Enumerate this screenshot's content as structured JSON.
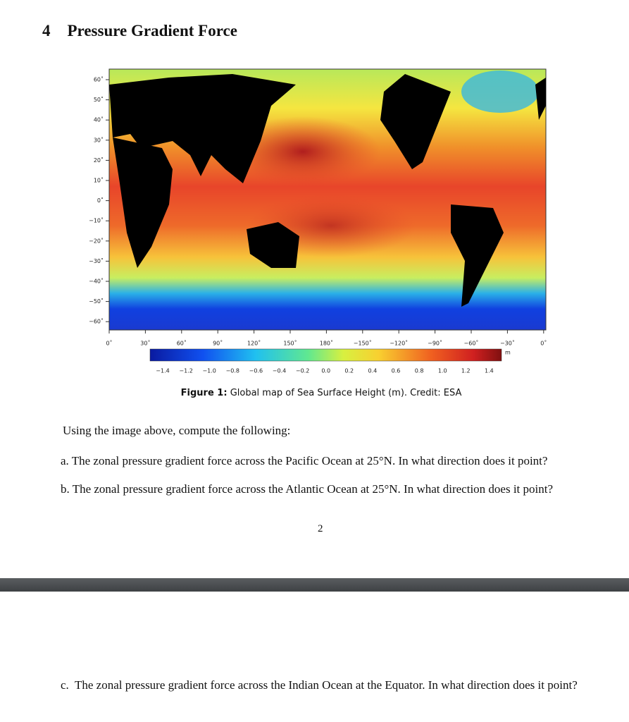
{
  "section": {
    "number": "4",
    "title": "Pressure Gradient Force"
  },
  "figure": {
    "lat_labels": [
      "60˚",
      "50˚",
      "40˚",
      "30˚",
      "20˚",
      "10˚",
      "0˚",
      "−10˚",
      "−20˚",
      "−30˚",
      "−40˚",
      "−50˚",
      "−60˚"
    ],
    "lon_labels": [
      "0˚",
      "30˚",
      "60˚",
      "90˚",
      "120˚",
      "150˚",
      "180˚",
      "−150˚",
      "−120˚",
      "−90˚",
      "−60˚",
      "−30˚",
      "0˚"
    ],
    "colorbar_labels": [
      "−1.4",
      "−1.2",
      "−1.0",
      "−0.8",
      "−0.6",
      "−0.4",
      "−0.2",
      "0.0",
      "0.2",
      "0.4",
      "0.6",
      "0.8",
      "1.0",
      "1.2",
      "1.4"
    ],
    "unit": "m",
    "caption_label": "Figure 1:",
    "caption": "Global map of Sea Surface Height (m). Credit: ESA"
  },
  "intro": "Using the image above, compute the following:",
  "questions": [
    {
      "label": "a.",
      "text": "The zonal pressure gradient force across the Pacific Ocean at 25°N. In what direction does it point?"
    },
    {
      "label": "b.",
      "text": "The zonal pressure gradient force across the Atlantic Ocean at 25°N. In what direction does it point?"
    },
    {
      "label": "c.",
      "text": "The zonal pressure gradient force across the Indian Ocean at the Equator. In what direction does it point?"
    }
  ],
  "page_number": "2"
}
